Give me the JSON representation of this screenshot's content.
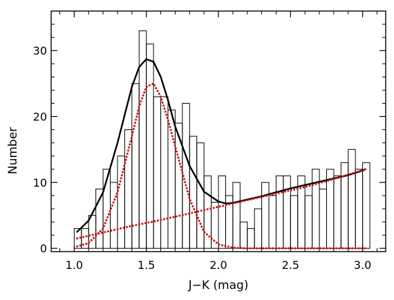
{
  "chart_data": {
    "type": "bar",
    "xlabel": "J−K (mag)",
    "ylabel": "Number",
    "xlim": [
      0.84,
      3.16
    ],
    "ylim": [
      -0.5,
      36
    ],
    "x_ticks": [
      1.0,
      1.5,
      2.0,
      2.5,
      3.0
    ],
    "x_tick_labels": [
      "1.0",
      "1.5",
      "2.0",
      "2.5",
      "3.0"
    ],
    "y_ticks": [
      0,
      10,
      20,
      30
    ],
    "y_tick_labels": [
      "0",
      "10",
      "20",
      "30"
    ],
    "bin_width": 0.05,
    "histogram": {
      "bin_left_edges": [
        1.0,
        1.05,
        1.1,
        1.15,
        1.2,
        1.25,
        1.3,
        1.35,
        1.4,
        1.45,
        1.5,
        1.55,
        1.6,
        1.65,
        1.7,
        1.75,
        1.8,
        1.85,
        1.9,
        1.95,
        2.0,
        2.05,
        2.1,
        2.15,
        2.2,
        2.25,
        2.3,
        2.35,
        2.4,
        2.45,
        2.5,
        2.55,
        2.6,
        2.65,
        2.7,
        2.75,
        2.8,
        2.85,
        2.9,
        2.95,
        3.0
      ],
      "counts": [
        3,
        3,
        5,
        9,
        12,
        10,
        14,
        18,
        25,
        33,
        31,
        23,
        23,
        21,
        19,
        22,
        17,
        16,
        11,
        7,
        11,
        8,
        10,
        4,
        3,
        6,
        10,
        8,
        11,
        11,
        8,
        11,
        8,
        12,
        9,
        12,
        11,
        13,
        15,
        12,
        13
      ]
    },
    "series": [
      {
        "name": "",
        "style": "solid",
        "color": "#000000",
        "x": [
          1.02,
          1.1,
          1.2,
          1.3,
          1.4,
          1.45,
          1.5,
          1.55,
          1.6,
          1.65,
          1.7,
          1.8,
          1.9,
          2.0,
          2.05,
          2.1,
          2.2,
          2.3,
          2.4,
          2.5,
          2.6,
          2.7,
          2.8,
          2.9,
          3.0,
          3.02
        ],
        "y": [
          2.5,
          4.2,
          8.5,
          16.0,
          24.5,
          27.5,
          28.7,
          28.3,
          26.0,
          22.5,
          18.5,
          12.5,
          8.6,
          7.1,
          6.8,
          6.9,
          7.4,
          7.9,
          8.5,
          9.1,
          9.6,
          10.1,
          10.6,
          11.1,
          11.8,
          12.0
        ]
      },
      {
        "name": "",
        "style": "dotted",
        "color": "#cc1111",
        "x": [
          1.02,
          1.1,
          1.2,
          1.3,
          1.4,
          1.45,
          1.5,
          1.55,
          1.6,
          1.65,
          1.7,
          1.8,
          1.9,
          2.0,
          2.1,
          2.2,
          2.3,
          3.02
        ],
        "y": [
          0.3,
          0.8,
          3.0,
          8.5,
          17.0,
          21.5,
          24.5,
          25.0,
          23.0,
          19.5,
          15.5,
          7.5,
          2.5,
          0.6,
          0.1,
          0.0,
          0.0,
          0.0
        ]
      },
      {
        "name": "",
        "style": "dotted",
        "color": "#cc1111",
        "x": [
          1.02,
          1.2,
          1.4,
          1.6,
          1.8,
          2.0,
          2.2,
          2.4,
          2.6,
          2.8,
          3.02
        ],
        "y": [
          1.5,
          2.4,
          3.4,
          4.3,
          5.3,
          6.3,
          7.3,
          8.3,
          9.3,
          10.5,
          12.0
        ]
      }
    ]
  }
}
